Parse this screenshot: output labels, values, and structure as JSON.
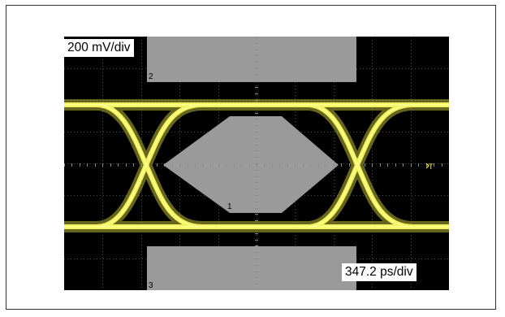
{
  "scope": {
    "vertical_scale": "200 mV/div",
    "horizontal_scale": "347.2 ps/div",
    "trigger_marker": "T",
    "mask_labels": {
      "mask1": "1",
      "mask2": "2",
      "mask3": "3"
    },
    "colors": {
      "background": "#000000",
      "trace": "#f2f25a",
      "trace_core": "#ffff9a",
      "mask": "#9a9a9a",
      "grid": "#4a4a4a"
    }
  }
}
